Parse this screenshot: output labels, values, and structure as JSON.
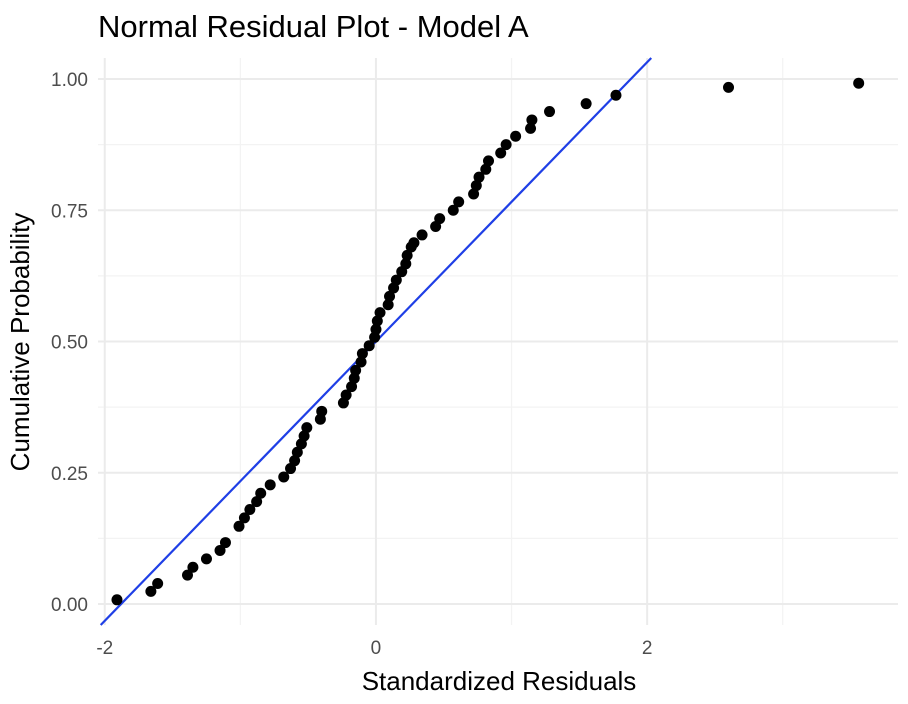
{
  "chart_data": {
    "type": "scatter",
    "title": "Normal Residual Plot - Model A",
    "xlabel": "Standardized Residuals",
    "ylabel": "Cumulative Probability",
    "xlim": [
      -2.05,
      3.85
    ],
    "ylim": [
      -0.04,
      1.04
    ],
    "x_ticks": [
      -2,
      0,
      2
    ],
    "x_tick_labels": [
      "-2",
      "0",
      "2"
    ],
    "y_ticks": [
      0,
      0.25,
      0.5,
      0.75,
      1.0
    ],
    "y_tick_labels": [
      "0.00",
      "0.25",
      "0.50",
      "0.75",
      "1.00"
    ],
    "grid": true,
    "reference_line": {
      "intercept": 0.5,
      "slope": 0.266,
      "color": "#1f3fe6"
    },
    "point_color": "#000000",
    "series": [
      {
        "x": [
          -1.91,
          -1.66,
          -1.61,
          -1.39,
          -1.35,
          -1.25,
          -1.15,
          -1.11,
          -1.01,
          -0.97,
          -0.93,
          -0.88,
          -0.85,
          -0.78,
          -0.68,
          -0.63,
          -0.6,
          -0.58,
          -0.55,
          -0.53,
          -0.51,
          -0.41,
          -0.4,
          -0.24,
          -0.22,
          -0.18,
          -0.16,
          -0.15,
          -0.11,
          -0.1,
          -0.05,
          -0.01,
          0.0,
          0.01,
          0.03,
          0.09,
          0.1,
          0.13,
          0.15,
          0.19,
          0.22,
          0.23,
          0.26,
          0.28,
          0.34,
          0.44,
          0.47,
          0.57,
          0.61,
          0.72,
          0.74,
          0.76,
          0.81,
          0.83,
          0.92,
          0.96,
          1.03,
          1.14,
          1.15,
          1.28,
          1.55,
          1.77,
          2.6,
          3.56
        ],
        "y": [
          0.008,
          0.024,
          0.039,
          0.055,
          0.07,
          0.086,
          0.102,
          0.117,
          0.148,
          0.164,
          0.18,
          0.195,
          0.211,
          0.227,
          0.242,
          0.258,
          0.273,
          0.289,
          0.305,
          0.32,
          0.336,
          0.352,
          0.367,
          0.383,
          0.398,
          0.414,
          0.43,
          0.445,
          0.461,
          0.477,
          0.492,
          0.508,
          0.523,
          0.539,
          0.555,
          0.57,
          0.586,
          0.602,
          0.617,
          0.633,
          0.648,
          0.664,
          0.68,
          0.688,
          0.703,
          0.719,
          0.734,
          0.75,
          0.766,
          0.781,
          0.797,
          0.813,
          0.828,
          0.844,
          0.859,
          0.875,
          0.891,
          0.906,
          0.922,
          0.938,
          0.953,
          0.969,
          0.984,
          0.992
        ]
      }
    ]
  }
}
